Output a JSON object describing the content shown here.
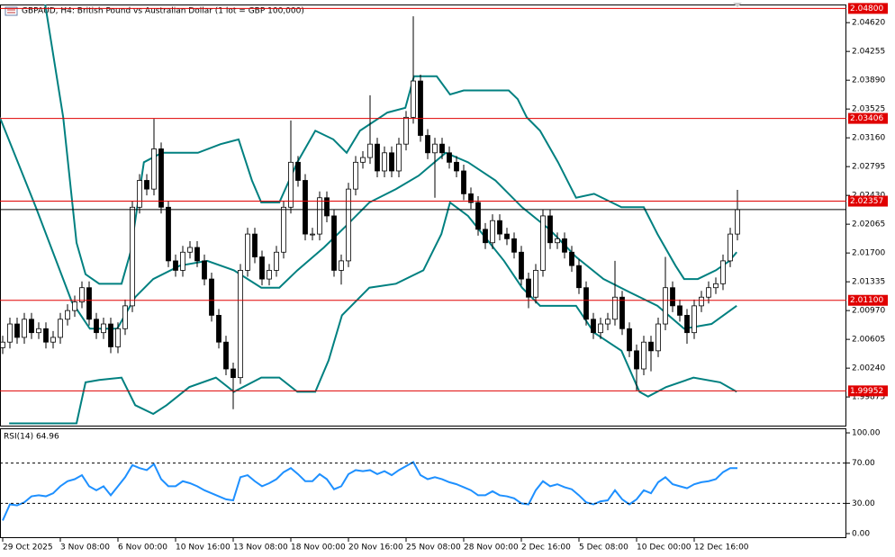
{
  "chart_data": [
    {
      "type": "candlestick",
      "title": "GBPAUD, H4:  British Pound vs Australian Dollar (1 lot = GBP 100,000)",
      "x": [
        0,
        1,
        2,
        3,
        4,
        5,
        6,
        7,
        8,
        9,
        10,
        11,
        12,
        13,
        14,
        15,
        16,
        17,
        18,
        19,
        20,
        21,
        22,
        23,
        24,
        25,
        26,
        27,
        28,
        29,
        30,
        31,
        32,
        33,
        34,
        35,
        36,
        37,
        38,
        39,
        40,
        41,
        42,
        43,
        44,
        45,
        46,
        47,
        48,
        49,
        50,
        51,
        52,
        53,
        54,
        55,
        56,
        57,
        58,
        59,
        60,
        61,
        62,
        63,
        64,
        65,
        66,
        67,
        68,
        69,
        70,
        71,
        72,
        73,
        74,
        75,
        76,
        77,
        78,
        79,
        80,
        81,
        82,
        83,
        84,
        85,
        86,
        87,
        88,
        89,
        90,
        91,
        92,
        93,
        94,
        95,
        96,
        97,
        98,
        99,
        100,
        101,
        102
      ],
      "open": [
        2.005,
        2.0057,
        2.008,
        2.0063,
        2.0086,
        2.0069,
        2.0074,
        2.0057,
        2.0063,
        2.0086,
        2.0097,
        2.0108,
        2.0126,
        2.0086,
        2.0069,
        2.008,
        2.0051,
        2.0074,
        2.0103,
        2.0228,
        2.0262,
        2.0251,
        2.0302,
        2.0228,
        2.016,
        2.0148,
        2.0171,
        2.0177,
        2.016,
        2.0137,
        2.0091,
        2.0057,
        2.0023,
        2.0012,
        2.0148,
        2.0194,
        2.0165,
        2.0137,
        2.0148,
        2.0171,
        2.0228,
        2.0285,
        2.0262,
        2.0194,
        2.0194,
        2.024,
        2.0217,
        2.0148,
        2.016,
        2.0251,
        2.0285,
        2.0291,
        2.0308,
        2.0274,
        2.0297,
        2.0274,
        2.0308,
        2.0342,
        2.0388,
        2.0319,
        2.0297,
        2.0308,
        2.0297,
        2.0285,
        2.0274,
        2.0245,
        2.0234,
        2.02,
        2.0183,
        2.0211,
        2.0194,
        2.0188,
        2.0171,
        2.0137,
        2.0114,
        2.0148,
        2.0217,
        2.0183,
        2.0188,
        2.0171,
        2.0154,
        2.0126,
        2.0086,
        2.0069,
        2.008,
        2.0086,
        2.0114,
        2.0074,
        2.0046,
        2.0023,
        2.0057,
        2.0046,
        2.008,
        2.0126,
        2.0103,
        2.0091,
        2.0069,
        2.0103,
        2.0114,
        2.0126,
        2.0131,
        2.016,
        2.0194
      ],
      "high": [
        2.0065,
        2.0088,
        2.0088,
        2.0094,
        2.0094,
        2.0082,
        2.0082,
        2.0071,
        2.0094,
        2.0105,
        2.0116,
        2.0134,
        2.0134,
        2.0094,
        2.0088,
        2.0088,
        2.0082,
        2.0111,
        2.0236,
        2.027,
        2.027,
        2.034,
        2.031,
        2.0236,
        2.0168,
        2.0179,
        2.0185,
        2.0185,
        2.0168,
        2.0145,
        2.0099,
        2.0065,
        2.0031,
        2.0156,
        2.0202,
        2.0202,
        2.0173,
        2.0156,
        2.0179,
        2.0236,
        2.0338,
        2.0293,
        2.027,
        2.0202,
        2.0248,
        2.0248,
        2.0225,
        2.0168,
        2.0259,
        2.0293,
        2.0299,
        2.037,
        2.0316,
        2.0305,
        2.0305,
        2.0316,
        2.035,
        2.047,
        2.0396,
        2.0327,
        2.0316,
        2.0316,
        2.0305,
        2.0293,
        2.0282,
        2.0253,
        2.0242,
        2.0208,
        2.0219,
        2.0219,
        2.0202,
        2.0196,
        2.0179,
        2.0145,
        2.0156,
        2.0225,
        2.0225,
        2.0196,
        2.0196,
        2.0179,
        2.0162,
        2.0134,
        2.0094,
        2.0088,
        2.0094,
        2.016,
        2.0122,
        2.0082,
        2.0054,
        2.0065,
        2.0065,
        2.0088,
        2.0165,
        2.0134,
        2.0111,
        2.0099,
        2.0111,
        2.0122,
        2.0134,
        2.0139,
        2.0168,
        2.0202,
        2.025
      ],
      "low": [
        2.0042,
        2.0049,
        2.0055,
        2.0055,
        2.0061,
        2.0061,
        2.0049,
        2.0049,
        2.0055,
        2.0078,
        2.0089,
        2.01,
        2.0078,
        2.0061,
        2.0061,
        2.0043,
        2.0043,
        2.0066,
        2.0095,
        2.022,
        2.0243,
        2.0243,
        2.022,
        2.0152,
        2.014,
        2.014,
        2.0163,
        2.0152,
        2.0129,
        2.0083,
        2.0049,
        2.0015,
        1.9972,
        2.0004,
        2.014,
        2.0157,
        2.0129,
        2.0129,
        2.014,
        2.0163,
        2.022,
        2.0254,
        2.0186,
        2.0186,
        2.0186,
        2.0209,
        2.014,
        2.013,
        2.0152,
        2.0243,
        2.0277,
        2.0283,
        2.0266,
        2.0266,
        2.0266,
        2.0266,
        2.03,
        2.0334,
        2.0311,
        2.0289,
        2.024,
        2.0289,
        2.0277,
        2.0266,
        2.0237,
        2.0226,
        2.0192,
        2.0175,
        2.0175,
        2.0186,
        2.018,
        2.0163,
        2.0129,
        2.01,
        2.0106,
        2.014,
        2.0175,
        2.0175,
        2.0163,
        2.0146,
        2.0118,
        2.0078,
        2.0061,
        2.0061,
        2.0072,
        2.0078,
        2.0066,
        2.0038,
        1.9995,
        2.0015,
        2.002,
        2.0038,
        2.0072,
        2.0095,
        2.0083,
        2.0055,
        2.0061,
        2.0095,
        2.0106,
        2.0118,
        2.0123,
        2.0152,
        2.0186
      ],
      "close": [
        2.0057,
        2.008,
        2.0063,
        2.0086,
        2.0069,
        2.0074,
        2.0057,
        2.0063,
        2.0086,
        2.0097,
        2.0108,
        2.0126,
        2.0086,
        2.0069,
        2.008,
        2.0051,
        2.0074,
        2.0103,
        2.0228,
        2.0262,
        2.0251,
        2.0302,
        2.0228,
        2.016,
        2.0148,
        2.0171,
        2.0177,
        2.016,
        2.0137,
        2.0091,
        2.0057,
        2.0023,
        2.0012,
        2.0148,
        2.0194,
        2.0165,
        2.0137,
        2.0148,
        2.0171,
        2.0228,
        2.0285,
        2.0262,
        2.0194,
        2.0194,
        2.024,
        2.0217,
        2.0148,
        2.016,
        2.0251,
        2.0285,
        2.0291,
        2.0308,
        2.0274,
        2.0297,
        2.0274,
        2.0308,
        2.0342,
        2.0388,
        2.0319,
        2.0297,
        2.0308,
        2.0297,
        2.0285,
        2.0274,
        2.0245,
        2.0234,
        2.02,
        2.0183,
        2.0211,
        2.0194,
        2.0188,
        2.0171,
        2.0137,
        2.0114,
        2.0148,
        2.0217,
        2.0183,
        2.0188,
        2.0171,
        2.0154,
        2.0126,
        2.0086,
        2.0069,
        2.008,
        2.0086,
        2.0114,
        2.0074,
        2.0046,
        2.0023,
        2.0057,
        2.0046,
        2.008,
        2.0126,
        2.0103,
        2.0091,
        2.0069,
        2.0103,
        2.0114,
        2.0126,
        2.0131,
        2.016,
        2.0194,
        2.0225
      ],
      "up_color": "#ffffff",
      "down_color": "#000000",
      "wick_color": "#000000",
      "last_price_color": "#000000",
      "bands": [
        {
          "color": "#008080",
          "x": [
            5.9,
            8.4,
            10.25,
            11.5,
            13.4,
            16.5,
            17.75,
            19.6,
            22.1,
            27.1,
            30.25,
            32.75,
            34.6,
            35.9,
            38.4,
            40.9,
            43.4,
            45.9,
            47.75,
            49.6,
            53.4,
            55.9,
            57.1,
            60.25,
            62.1,
            64,
            67.1,
            70.25,
            71.5,
            72.75,
            74.6,
            77.1,
            79.6,
            82.1,
            85.9,
            89,
            90.9,
            93.4,
            94.6,
            96.5,
            99,
            100.9,
            101.9
          ],
          "values": [
            2.0485,
            2.0342,
            2.0183,
            2.0143,
            2.0131,
            2.0131,
            2.0171,
            2.0285,
            2.0297,
            2.0297,
            2.0308,
            2.0314,
            2.0262,
            2.0234,
            2.0234,
            2.0285,
            2.0325,
            2.0314,
            2.0297,
            2.0325,
            2.0348,
            2.0354,
            2.0394,
            2.0394,
            2.0371,
            2.0376,
            2.0376,
            2.0376,
            2.0365,
            2.0342,
            2.0325,
            2.0285,
            2.024,
            2.0245,
            2.0228,
            2.0228,
            2.0194,
            2.0154,
            2.0137,
            2.0137,
            2.0148,
            2.016,
            2.0171
          ]
        },
        {
          "color": "#008080",
          "x": [
            -0.4,
            4.6,
            9.6,
            12.1,
            15.9,
            18.4,
            20.9,
            24.6,
            28.4,
            32.1,
            35.9,
            38.4,
            40.9,
            44.6,
            47.75,
            50.9,
            54.6,
            57.75,
            61.5,
            64.6,
            68.4,
            72.1,
            75.9,
            79.6,
            83.4,
            87.1,
            90.9,
            94.6,
            98.4,
            101.9
          ],
          "values": [
            2.0342,
            2.0228,
            2.0108,
            2.0074,
            2.0074,
            2.0114,
            2.0137,
            2.0154,
            2.016,
            2.0148,
            2.0126,
            2.0126,
            2.0148,
            2.0177,
            2.0205,
            2.0234,
            2.0251,
            2.0268,
            2.0297,
            2.0285,
            2.0262,
            2.0228,
            2.02,
            2.0165,
            2.0137,
            2.012,
            2.0103,
            2.0074,
            2.008,
            2.0103
          ]
        },
        {
          "color": "#008080",
          "x": [
            0.9,
            10.25,
            11.5,
            13.4,
            16.5,
            18.4,
            20.9,
            22.75,
            25.9,
            29.6,
            32.1,
            35.9,
            38.4,
            40.9,
            43.4,
            45.25,
            47.1,
            50.9,
            54.6,
            58.4,
            60.9,
            62.1,
            64.6,
            69.6,
            72.1,
            74.6,
            79.6,
            82.1,
            85.9,
            88.4,
            89.6,
            92.1,
            95.9,
            99.6,
            101.9
          ],
          "values": [
            1.9954,
            1.9954,
            2.0006,
            2.0009,
            2.0012,
            1.9977,
            1.9966,
            1.9977,
            2.0,
            2.0012,
            1.9994,
            2.0012,
            2.0012,
            1.9994,
            1.9994,
            2.0034,
            2.0091,
            2.0126,
            2.0131,
            2.0148,
            2.0194,
            2.0234,
            2.0217,
            2.016,
            2.0126,
            2.0103,
            2.0103,
            2.0069,
            2.0046,
            1.9994,
            1.9988,
            2.0,
            2.0012,
            2.0006,
            1.9994
          ]
        }
      ],
      "levels": [
        {
          "value": 2.048,
          "label": "2.04800",
          "color": "#e00000"
        },
        {
          "value": 2.03406,
          "label": "2.03406",
          "color": "#e00000"
        },
        {
          "value": 2.02357,
          "label": "2.02357",
          "color": "#e00000"
        },
        {
          "value": 2.011,
          "label": "2.01100",
          "color": "#e00000"
        },
        {
          "value": 1.99952,
          "label": "1.99952",
          "color": "#e00000"
        }
      ],
      "xlim": [
        -0.375,
        117.125
      ],
      "ylim": [
        1.995,
        2.0485
      ],
      "yticks": [
        {
          "value": 2.0462,
          "label": "2.04620"
        },
        {
          "value": 2.04255,
          "label": "2.04255"
        },
        {
          "value": 2.0389,
          "label": "2.03890"
        },
        {
          "value": 2.03525,
          "label": "2.03525"
        },
        {
          "value": 2.0316,
          "label": "2.03160"
        },
        {
          "value": 2.02795,
          "label": "2.02795"
        },
        {
          "value": 2.0243,
          "label": "2.02430"
        },
        {
          "value": 2.02065,
          "label": "2.02065"
        },
        {
          "value": 2.017,
          "label": "2.01700"
        },
        {
          "value": 2.01335,
          "label": "2.01335"
        },
        {
          "value": 2.0097,
          "label": "2.00970"
        },
        {
          "value": 2.00605,
          "label": "2.00605"
        },
        {
          "value": 2.0024,
          "label": "2.00240"
        },
        {
          "value": 1.99875,
          "label": "1.99875"
        }
      ]
    },
    {
      "type": "line",
      "title": "RSI(14) 64.96",
      "x": [
        0,
        1,
        2,
        3,
        4,
        5,
        6,
        7,
        8,
        9,
        10,
        11,
        12,
        13,
        14,
        15,
        16,
        17,
        18,
        19,
        20,
        21,
        22,
        23,
        24,
        25,
        26,
        27,
        28,
        29,
        30,
        31,
        32,
        33,
        34,
        35,
        36,
        37,
        38,
        39,
        40,
        41,
        42,
        43,
        44,
        45,
        46,
        47,
        48,
        49,
        50,
        51,
        52,
        53,
        54,
        55,
        56,
        57,
        58,
        59,
        60,
        61,
        62,
        63,
        64,
        65,
        66,
        67,
        68,
        69,
        70,
        71,
        72,
        73,
        74,
        75,
        76,
        77,
        78,
        79,
        80,
        81,
        82,
        83,
        84,
        85,
        86,
        87,
        88,
        89,
        90,
        91,
        92,
        93,
        94,
        95,
        96,
        97,
        98,
        99,
        100,
        101,
        102
      ],
      "values": [
        13,
        29,
        28,
        31,
        37,
        38,
        37,
        40,
        47,
        52,
        54,
        58,
        47,
        43,
        47,
        38,
        47,
        56,
        68,
        65,
        63,
        69,
        54,
        47,
        47,
        52,
        50,
        47,
        43,
        40,
        37,
        34,
        33,
        56,
        58,
        52,
        47,
        50,
        54,
        61,
        65,
        59,
        52,
        52,
        59,
        54,
        44,
        47,
        59,
        63,
        62,
        63,
        59,
        62,
        58,
        63,
        67,
        71,
        58,
        54,
        56,
        54,
        51,
        49,
        46,
        43,
        38,
        38,
        42,
        38,
        37,
        35,
        30,
        29,
        43,
        52,
        47,
        49,
        46,
        44,
        38,
        31,
        29,
        32,
        33,
        43,
        34,
        29,
        34,
        43,
        40,
        51,
        56,
        49,
        47,
        45,
        49,
        51,
        52,
        54,
        61,
        65,
        64.96
      ],
      "color": "#1e90ff",
      "levels": [
        70,
        30
      ],
      "xlim": [
        -0.375,
        117.125
      ],
      "ylim": [
        -4.5,
        104.5
      ],
      "yticks": [
        {
          "value": 100,
          "label": "100.00"
        },
        {
          "value": 70,
          "label": "70.00"
        },
        {
          "value": 30,
          "label": "30.00"
        },
        {
          "value": 0,
          "label": "0.00"
        }
      ],
      "xticks": [
        {
          "value": 0,
          "label": "29 Oct 2025"
        },
        {
          "value": 8,
          "label": "3 Nov 08:00"
        },
        {
          "value": 16,
          "label": "6 Nov 00:00"
        },
        {
          "value": 24,
          "label": "10 Nov 16:00"
        },
        {
          "value": 32,
          "label": "13 Nov 08:00"
        },
        {
          "value": 40,
          "label": "18 Nov 00:00"
        },
        {
          "value": 48,
          "label": "20 Nov 16:00"
        },
        {
          "value": 56,
          "label": "25 Nov 08:00"
        },
        {
          "value": 64,
          "label": "28 Nov 00:00"
        },
        {
          "value": 72,
          "label": "2 Dec 16:00"
        },
        {
          "value": 80,
          "label": "5 Dec 08:00"
        },
        {
          "value": 88,
          "label": "10 Dec 00:00"
        },
        {
          "value": 96,
          "label": "12 Dec 16:00"
        }
      ]
    }
  ]
}
